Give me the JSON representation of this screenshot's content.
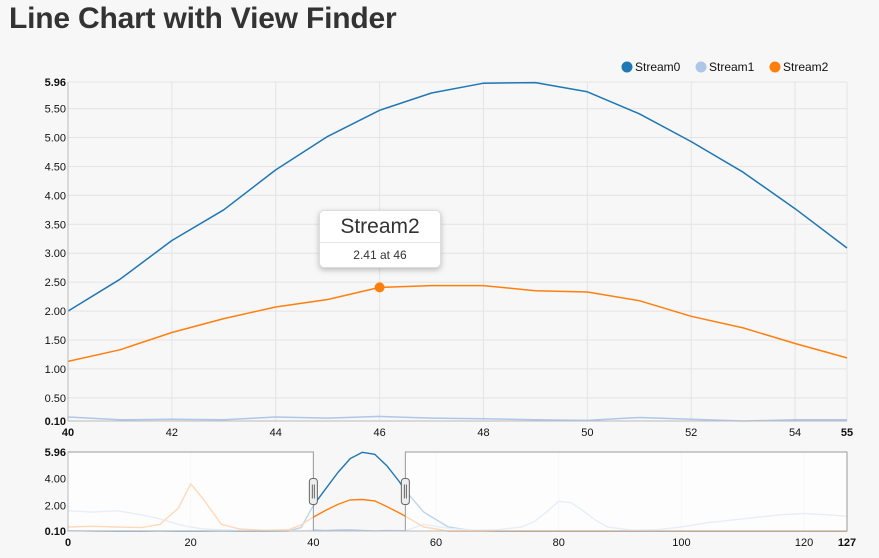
{
  "page": {
    "title": "Line Chart with View Finder"
  },
  "tooltip": {
    "series": "Stream2",
    "text": "2.41 at 46"
  },
  "chart_data": {
    "type": "line",
    "title": "Line Chart with View Finder",
    "legend_position": "top-right",
    "grid": true,
    "series": [
      {
        "name": "Stream0",
        "color": "#1f77b4"
      },
      {
        "name": "Stream1",
        "color": "#aec7e8"
      },
      {
        "name": "Stream2",
        "color": "#ff7f0e"
      }
    ],
    "focus": {
      "xlim": [
        40,
        55
      ],
      "ylim": [
        0.1,
        5.96
      ],
      "x_ticks": [
        "40",
        "42",
        "44",
        "46",
        "48",
        "50",
        "52",
        "54",
        "55"
      ],
      "y_ticks": [
        "0.10",
        "0.50",
        "1.00",
        "1.50",
        "2.00",
        "2.50",
        "3.00",
        "3.50",
        "4.00",
        "4.50",
        "5.00",
        "5.50",
        "5.96"
      ],
      "x": [
        40,
        41,
        42,
        43,
        44,
        45,
        46,
        47,
        48,
        49,
        50,
        51,
        52,
        53,
        54,
        55
      ],
      "values": {
        "Stream0": [
          2.0,
          2.55,
          3.22,
          3.75,
          4.44,
          5.02,
          5.47,
          5.77,
          5.94,
          5.95,
          5.79,
          5.41,
          4.93,
          4.4,
          3.77,
          3.09
        ],
        "Stream1": [
          0.17,
          0.12,
          0.13,
          0.12,
          0.17,
          0.15,
          0.18,
          0.15,
          0.14,
          0.12,
          0.11,
          0.16,
          0.13,
          0.1,
          0.12,
          0.12
        ],
        "Stream2": [
          1.13,
          1.33,
          1.63,
          1.87,
          2.07,
          2.2,
          2.41,
          2.44,
          2.44,
          2.35,
          2.33,
          2.18,
          1.91,
          1.71,
          1.44,
          1.19
        ]
      }
    },
    "context": {
      "xlim": [
        0,
        127
      ],
      "ylim": [
        0.1,
        5.96
      ],
      "x_ticks": [
        "0",
        "20",
        "40",
        "60",
        "80",
        "100",
        "120",
        "127"
      ],
      "y_ticks": [
        "0.10",
        "2.00",
        "4.00",
        "5.96"
      ],
      "brush_extent": [
        40,
        55
      ],
      "x": [
        0,
        4,
        8,
        12,
        15,
        18,
        20,
        22,
        25,
        28,
        32,
        36,
        38,
        40,
        42,
        44,
        46,
        48,
        50,
        52,
        54,
        55,
        58,
        62,
        66,
        70,
        74,
        76,
        78,
        80,
        82,
        84,
        86,
        88,
        92,
        96,
        100,
        104,
        108,
        112,
        116,
        120,
        124,
        127
      ],
      "values": {
        "Stream0": [
          0.12,
          0.11,
          0.1,
          0.1,
          0.11,
          0.1,
          0.1,
          0.1,
          0.11,
          0.1,
          0.1,
          0.11,
          0.35,
          2.0,
          3.22,
          4.44,
          5.47,
          5.94,
          5.79,
          4.93,
          3.77,
          3.09,
          1.5,
          0.4,
          0.12,
          0.1,
          0.1,
          0.1,
          0.1,
          0.1,
          0.1,
          0.1,
          0.1,
          0.1,
          0.1,
          0.1,
          0.1,
          0.1,
          0.1,
          0.1,
          0.1,
          0.1,
          0.1,
          0.1
        ],
        "Stream1": [
          1.6,
          1.5,
          1.6,
          1.3,
          1.0,
          0.6,
          0.4,
          0.25,
          0.2,
          0.15,
          0.12,
          0.12,
          0.12,
          0.17,
          0.13,
          0.17,
          0.18,
          0.14,
          0.11,
          0.13,
          0.12,
          0.12,
          0.6,
          0.3,
          0.15,
          0.2,
          0.4,
          0.8,
          1.5,
          2.3,
          2.2,
          1.6,
          0.9,
          0.4,
          0.15,
          0.2,
          0.4,
          0.7,
          0.9,
          1.1,
          1.3,
          1.4,
          1.3,
          1.2
        ],
        "Stream2": [
          0.4,
          0.45,
          0.4,
          0.35,
          0.6,
          1.8,
          3.6,
          2.5,
          0.6,
          0.25,
          0.15,
          0.2,
          0.55,
          1.13,
          1.63,
          2.07,
          2.41,
          2.44,
          2.33,
          1.91,
          1.44,
          1.19,
          0.4,
          0.1,
          0.1,
          0.1,
          0.1,
          0.1,
          0.1,
          0.1,
          0.1,
          0.1,
          0.1,
          0.1,
          0.1,
          0.1,
          0.1,
          0.1,
          0.1,
          0.1,
          0.1,
          0.1,
          0.1,
          0.1
        ]
      }
    },
    "tooltip_point": {
      "series": "Stream2",
      "x": 46,
      "y": 2.41
    }
  }
}
